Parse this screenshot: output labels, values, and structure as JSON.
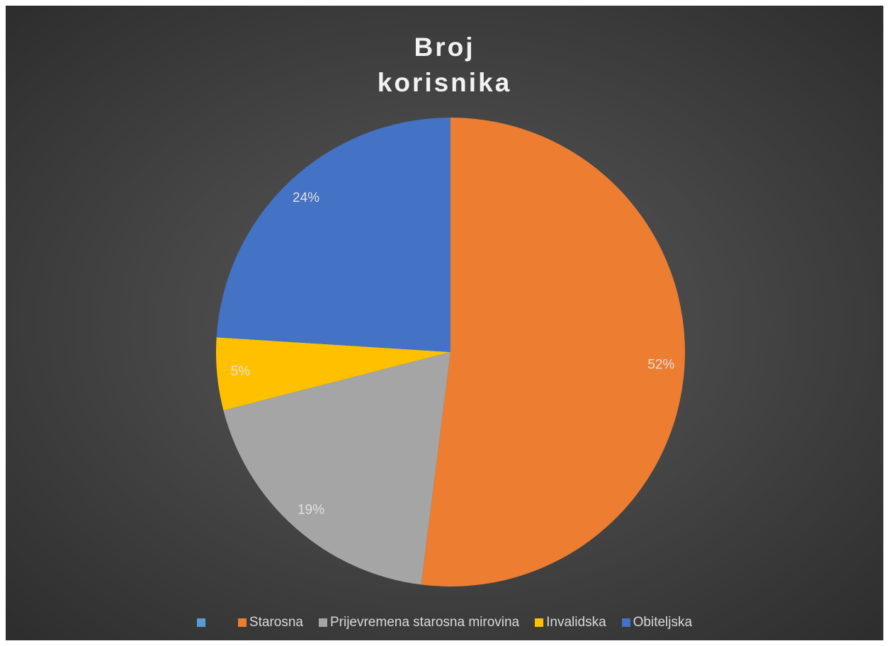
{
  "chart_data": {
    "type": "pie",
    "title": "Broj korisnika",
    "categories": [
      null,
      "Starosna",
      "Prijevremena starosna mirovina",
      "Invalidska",
      "Obiteljska"
    ],
    "values": [
      0,
      52,
      19,
      5,
      24
    ],
    "value_labels": [
      null,
      "52%",
      "19%",
      "5%",
      "24%"
    ],
    "colors": [
      "#5b9bd5",
      "#ed7d31",
      "#a5a5a5",
      "#ffc000",
      "#4472c4"
    ],
    "legend": "bottom"
  }
}
